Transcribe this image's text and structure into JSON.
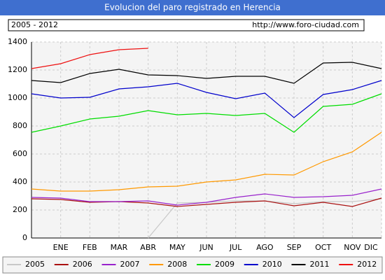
{
  "chart_data": {
    "type": "line",
    "title": "Evolucion del paro registrado en Herencia",
    "subtitle": "2005 - 2012",
    "source": "http://www.foro-ciudad.com",
    "categories": [
      null,
      "ENE",
      "FEB",
      "MAR",
      "ABR",
      "MAY",
      "JUN",
      "JUL",
      "AGO",
      "SEP",
      "OCT",
      "NOV",
      "DIC"
    ],
    "ylim": [
      0,
      1400
    ],
    "yticks": [
      0,
      200,
      400,
      600,
      800,
      1000,
      1200,
      1400
    ],
    "grid": true,
    "series": [
      {
        "name": "2005",
        "color": "#c8c8c8",
        "values": [
          null,
          null,
          null,
          null,
          0,
          250,
          255,
          265,
          265,
          245,
          260,
          260,
          280
        ]
      },
      {
        "name": "2006",
        "color": "#aa1111",
        "values": [
          280,
          275,
          255,
          260,
          250,
          225,
          240,
          255,
          265,
          230,
          255,
          225,
          285
        ]
      },
      {
        "name": "2007",
        "color": "#9922cc",
        "values": [
          290,
          285,
          260,
          260,
          265,
          235,
          255,
          290,
          315,
          290,
          295,
          305,
          350
        ]
      },
      {
        "name": "2008",
        "color": "#ff9900",
        "values": [
          350,
          335,
          335,
          345,
          365,
          370,
          400,
          415,
          455,
          450,
          545,
          615,
          755
        ]
      },
      {
        "name": "2009",
        "color": "#00dd00",
        "values": [
          755,
          800,
          850,
          870,
          910,
          880,
          890,
          875,
          890,
          755,
          940,
          955,
          1030
        ]
      },
      {
        "name": "2010",
        "color": "#0000cc",
        "values": [
          1030,
          1000,
          1005,
          1065,
          1080,
          1105,
          1040,
          995,
          1035,
          860,
          1025,
          1060,
          1125
        ]
      },
      {
        "name": "2011",
        "color": "#000000",
        "values": [
          1125,
          1110,
          1175,
          1205,
          1165,
          1160,
          1140,
          1155,
          1155,
          1105,
          1250,
          1255,
          1210
        ]
      },
      {
        "name": "2012",
        "color": "#ee1111",
        "values": [
          1210,
          1245,
          1310,
          1345,
          1355,
          null,
          null,
          null,
          null,
          null,
          null,
          null,
          null
        ]
      }
    ]
  }
}
